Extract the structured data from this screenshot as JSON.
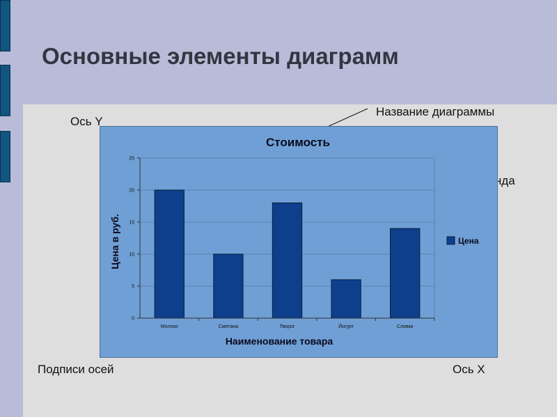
{
  "slide": {
    "title": "Основные элементы диаграмм"
  },
  "callouts": {
    "chart_title": "Название диаграммы",
    "axis_y": "Ось Y",
    "legend": "Легенда",
    "axis_labels": "Подписи осей",
    "axis_x": "Ось X"
  },
  "colors": {
    "background": "#b8bcd8",
    "panel": "#dedede",
    "chart_background": "#6f9fd4",
    "bar": "#0d3f8c",
    "side_blocks": "#12557f"
  },
  "chart_data": {
    "type": "bar",
    "title": "Стоимость",
    "xlabel": "Наименование товара",
    "ylabel": "Цена в руб.",
    "categories": [
      "Молоко",
      "Сметана",
      "Творог",
      "Йогурт",
      "Сливки"
    ],
    "series": [
      {
        "name": "Цена",
        "values": [
          20,
          10,
          18,
          6,
          14
        ],
        "color": "#0d3f8c"
      }
    ],
    "ylim": [
      0,
      25
    ],
    "yticks": [
      0,
      5,
      10,
      15,
      20,
      25
    ],
    "grid": true,
    "legend_position": "right"
  }
}
